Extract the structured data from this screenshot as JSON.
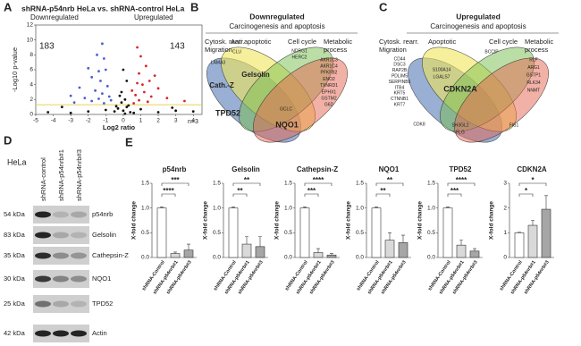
{
  "panel_labels": [
    "A",
    "B",
    "C",
    "D",
    "E"
  ],
  "venn_down": {
    "title": "Downregulated",
    "subtitle": "Carcinogenesis and apoptosis",
    "sets": [
      [
        "Cytosk. rearr.",
        "Migration"
      ],
      [
        "Anti apoptotic"
      ],
      [
        "Cell cycle"
      ],
      [
        "Metabolic",
        "process"
      ]
    ],
    "genes": [
      [
        "LAMA3"
      ],
      [
        "CLU"
      ],
      [
        "NDRG1",
        "HERC2"
      ],
      [
        "AKR1C3",
        "AKR1C4",
        "PFKFB2",
        "ENO2",
        "TXNRD1",
        "EPHX1",
        "GSTM2",
        "G6D"
      ],
      [
        "Cath.-Z"
      ],
      [
        "Gelsolin"
      ],
      [
        "TPD52"
      ],
      [
        "GCLC"
      ],
      [
        "NQO1"
      ]
    ]
  },
  "venn_up": {
    "title": "Upregulated",
    "subtitle": "Carcinogenesis and apoptosis",
    "sets": [
      [
        "Cytosk. rearr.",
        "Migration"
      ],
      [
        "Apoptotic"
      ],
      [
        "Cell cycle"
      ],
      [
        "Metabolic",
        "process"
      ]
    ],
    "genes": [
      [
        "CD44",
        "DSC3",
        "RAP2B",
        "PDLIM5",
        "SERPINB5",
        "ITB4",
        "KRT5",
        "CTNNB1",
        "KRT7"
      ],
      [
        "S100A14",
        "LGALS7"
      ],
      [
        "BCCIP"
      ],
      [
        "RLF",
        "ARG1",
        "GSTP1",
        "RLK34",
        "NNMT"
      ],
      [
        "CDKN2A"
      ],
      [
        "CDK8"
      ],
      [
        "SH3GL2",
        "FLG"
      ],
      [
        "FIS1"
      ]
    ]
  },
  "blot": {
    "cell_line": "HeLa",
    "lanes": [
      "shRNA-control",
      "shRNA-p54nrb#1",
      "shRNA-p54nrb#3"
    ],
    "rows": [
      {
        "kda": "54 kDa",
        "protein": "p54nrb"
      },
      {
        "kda": "83 kDa",
        "protein": "Gelsolin"
      },
      {
        "kda": "35 kDa",
        "protein": "Cathepsin-Z"
      },
      {
        "kda": "30 kDa",
        "protein": "NQO1"
      },
      {
        "kda": "25 kDa",
        "protein": "TPD52"
      },
      {
        "kda": "42 kDa",
        "protein": "Actin"
      }
    ]
  },
  "chart_data": [
    {
      "type": "scatter",
      "title": "shRNA-p54nrb HeLa  vs. shRNA-control  HeLa",
      "xlabel": "Log2 ratio",
      "ylabel": "-Log10 p-value",
      "down_label": "Downregulated",
      "up_label": "Upregulated",
      "down_count": 183,
      "up_count": 143,
      "note": "n=3",
      "threshold": 1.3,
      "threshold_color": "#e6d253",
      "xlim": [
        -5,
        4.5
      ],
      "ylim": [
        0,
        12
      ],
      "xticks": [
        -5,
        -4,
        -3,
        -2,
        -1,
        0,
        1,
        2,
        3,
        4
      ],
      "yticks": [
        0,
        2,
        4,
        6,
        8,
        10,
        12
      ],
      "series": [
        {
          "color": "#4a5fd0",
          "x": [
            -1.2,
            -1.5,
            -1.1,
            -2,
            -1.8,
            -1.3,
            -2.5,
            -1.6,
            -1.2,
            -3,
            -2.2,
            -1.4,
            -1.8,
            -2.8,
            -1.1,
            -0.9,
            -1,
            -0.8,
            -0.7,
            -1.4
          ],
          "values": [
            9.5,
            8,
            7.5,
            6.2,
            5,
            4.5,
            3.6,
            3.2,
            2.8,
            2.5,
            2.2,
            2.1,
            1.8,
            1.6,
            1.5,
            3.8,
            6,
            2.4,
            1.9,
            5.8
          ]
        },
        {
          "color": "#d9262b",
          "x": [
            0.8,
            1,
            1.3,
            0.9,
            1.5,
            1.1,
            2,
            1.2,
            0.7,
            1.6,
            2.5,
            0.9,
            1.4,
            3.5,
            0.6,
            1.8,
            0.8,
            0.5
          ],
          "values": [
            9,
            7.8,
            6.5,
            5.5,
            4.5,
            4,
            3.5,
            3,
            2.6,
            2.4,
            2.2,
            1.9,
            1.7,
            1.8,
            1.5,
            5.2,
            4.2,
            3.2
          ]
        },
        {
          "color": "#111111",
          "x": [
            0,
            0.2,
            -0.3,
            0.4,
            -0.5,
            0.1,
            -0.1,
            0.2,
            -0.2,
            0.3,
            -1,
            1,
            -2,
            2,
            -3,
            3,
            -4.3,
            4,
            -3.5,
            2.8,
            0,
            -0.1,
            0.1,
            -0.4,
            0.6
          ],
          "values": [
            0.5,
            1,
            0.8,
            0.3,
            0.4,
            2,
            3,
            4.5,
            2.5,
            1.2,
            0.6,
            0.7,
            0.4,
            0.3,
            0.2,
            0.5,
            0.3,
            0.4,
            1,
            0.9,
            6,
            1.6,
            0.1,
            1.1,
            0.2
          ]
        }
      ]
    },
    {
      "type": "bar",
      "title": "p54nrb",
      "ylabel": "X-fold change",
      "categories": [
        "shRNA-Control",
        "shRNA-p54nrb#1",
        "shRNA-p54nrb#3"
      ],
      "values": [
        1,
        0.08,
        0.15
      ],
      "errors": [
        0.02,
        0.03,
        0.12
      ],
      "colors": [
        "#ffffff",
        "#d9d9d9",
        "#a6a6a6"
      ],
      "significance": [
        "****",
        "***"
      ],
      "ylim": [
        0,
        1.5
      ],
      "yticks": [
        {
          "value": 0,
          "label": "0.0"
        },
        {
          "value": 0.5,
          "label": "0.5"
        },
        {
          "value": 1,
          "label": "1.0"
        },
        {
          "value": 1.5,
          "label": "1.5"
        }
      ]
    },
    {
      "type": "bar",
      "title": "Gelsolin",
      "ylabel": "X-fold change",
      "categories": [
        "shRNA-Control",
        "shRNA-p54nrb#1",
        "shRNA-p54nrb#3"
      ],
      "values": [
        1,
        0.27,
        0.22
      ],
      "errors": [
        0.02,
        0.15,
        0.2
      ],
      "colors": [
        "#ffffff",
        "#d9d9d9",
        "#a6a6a6"
      ],
      "significance": [
        "**",
        "**"
      ],
      "ylim": [
        0,
        1.5
      ],
      "yticks": [
        {
          "value": 0,
          "label": "0.0"
        },
        {
          "value": 0.5,
          "label": "0.5"
        },
        {
          "value": 1,
          "label": "1.0"
        },
        {
          "value": 1.5,
          "label": "1.5"
        }
      ]
    },
    {
      "type": "bar",
      "title": "Cathepsin-Z",
      "ylabel": "X-fold change",
      "categories": [
        "shRNA-Control",
        "shRNA-p54nrb#1",
        "shRNA-p54nrb#3"
      ],
      "values": [
        1,
        0.1,
        0.05
      ],
      "errors": [
        0.02,
        0.08,
        0.03
      ],
      "colors": [
        "#ffffff",
        "#d9d9d9",
        "#a6a6a6"
      ],
      "significance": [
        "***",
        "****"
      ],
      "ylim": [
        0,
        1.5
      ],
      "yticks": [
        {
          "value": 0,
          "label": "0.0"
        },
        {
          "value": 0.5,
          "label": "0.5"
        },
        {
          "value": 1,
          "label": "1.0"
        },
        {
          "value": 1.5,
          "label": "1.5"
        }
      ]
    },
    {
      "type": "bar",
      "title": "NQO1",
      "ylabel": "X-fold change",
      "categories": [
        "shRNA-Control",
        "shRNA-p54nrb#1",
        "shRNA-p54nrb#3"
      ],
      "values": [
        1,
        0.35,
        0.3
      ],
      "errors": [
        0.02,
        0.15,
        0.15
      ],
      "colors": [
        "#ffffff",
        "#d9d9d9",
        "#a6a6a6"
      ],
      "significance": [
        "**",
        "**"
      ],
      "ylim": [
        0,
        1.5
      ],
      "yticks": [
        {
          "value": 0,
          "label": "0.0"
        },
        {
          "value": 0.5,
          "label": "0.5"
        },
        {
          "value": 1,
          "label": "1.0"
        },
        {
          "value": 1.5,
          "label": "1.5"
        }
      ]
    },
    {
      "type": "bar",
      "title": "TPD52",
      "ylabel": "X-fold change",
      "categories": [
        "shRNA-Control",
        "shRNA-p54nrb#1",
        "shRNA-p54nrb#3"
      ],
      "values": [
        1,
        0.25,
        0.13
      ],
      "errors": [
        0.02,
        0.1,
        0.05
      ],
      "colors": [
        "#ffffff",
        "#d9d9d9",
        "#a6a6a6"
      ],
      "significance": [
        "***",
        "****"
      ],
      "ylim": [
        0,
        1.5
      ],
      "yticks": [
        {
          "value": 0,
          "label": "0.0"
        },
        {
          "value": 0.5,
          "label": "0.5"
        },
        {
          "value": 1,
          "label": "1.0"
        },
        {
          "value": 1.5,
          "label": "1.5"
        }
      ]
    },
    {
      "type": "bar",
      "title": "CDKN2A",
      "ylabel": "X-fold change",
      "categories": [
        "shRNA-Control",
        "shRNA-p54nrb#1",
        "shRNA-p54nrb#3"
      ],
      "values": [
        1,
        1.3,
        1.95
      ],
      "errors": [
        0.02,
        0.2,
        0.55
      ],
      "colors": [
        "#ffffff",
        "#d9d9d9",
        "#a6a6a6"
      ],
      "significance": [
        "*",
        "*"
      ],
      "ylim": [
        0,
        3
      ],
      "yticks": [
        0,
        1,
        2,
        3
      ]
    }
  ]
}
